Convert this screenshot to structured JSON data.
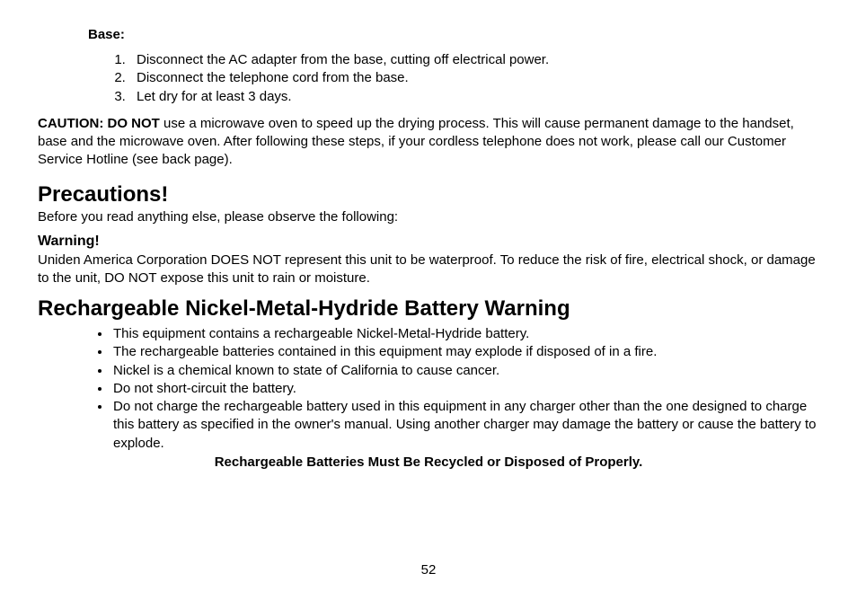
{
  "base": {
    "label": "Base:",
    "steps": [
      "Disconnect the AC adapter from the base, cutting off electrical power.",
      "Disconnect the telephone cord from the base.",
      "Let dry for at least 3 days."
    ]
  },
  "caution": {
    "prefix": "CAUTION: DO NOT",
    "rest": " use a microwave oven to speed up the drying process. This will cause permanent damage to the handset, base and the microwave oven. After following these steps, if your cordless telephone does not work, please call our Customer Service Hotline (see back page)."
  },
  "precautions": {
    "heading": "Precautions!",
    "intro": "Before you read anything else, please observe the following:",
    "warning_label": "Warning!",
    "warning_text": "Uniden America Corporation DOES NOT represent this unit to be waterproof. To reduce the risk of fire, electrical shock, or damage to the unit, DO NOT expose this unit to rain or moisture."
  },
  "battery": {
    "heading": "Rechargeable Nickel-Metal-Hydride Battery Warning",
    "bullets": [
      "This equipment contains a rechargeable Nickel-Metal-Hydride battery.",
      "The rechargeable batteries contained in this equipment may explode if disposed of in a fire.",
      "Nickel is a chemical known to state of California to cause cancer.",
      "Do not short-circuit the battery.",
      "Do not charge the rechargeable battery used in this equipment in any charger other than the one designed to charge this battery as specified in the owner's manual. Using another charger may damage the battery or cause the battery to explode."
    ],
    "recycle_line": "Rechargeable Batteries Must Be Recycled or Disposed of Properly."
  },
  "page_number": "52",
  "style": {
    "body_font_family": "Arial, Helvetica, sans-serif",
    "text_color": "#000000",
    "background_color": "#ffffff",
    "heading_fontsize_pt": 18,
    "body_fontsize_pt": 11
  }
}
